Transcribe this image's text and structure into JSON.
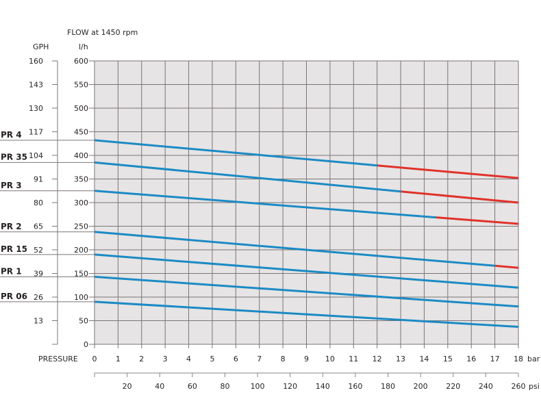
{
  "chart_data": {
    "type": "line",
    "title": "FLOW at 1450 rpm",
    "ylabel_left": "GPH",
    "ylabel_right": "l/h",
    "xlabel": "PRESSURE",
    "x_unit_primary": "bar",
    "x_unit_secondary": "psi",
    "xlim": [
      0,
      18
    ],
    "ylim": [
      0,
      600
    ],
    "grid": true,
    "x_ticks": [
      "0",
      "1",
      "2",
      "3",
      "4",
      "5",
      "6",
      "7",
      "8",
      "9",
      "10",
      "11",
      "12",
      "13",
      "14",
      "15",
      "16",
      "17",
      "18"
    ],
    "y_ticks_lh": [
      "0",
      "50",
      "100",
      "150",
      "200",
      "250",
      "300",
      "350",
      "400",
      "450",
      "500",
      "550",
      "600"
    ],
    "y_ticks_gph": [
      "",
      "13",
      "26",
      "39",
      "52",
      "65",
      "80",
      "91",
      "104",
      "117",
      "130",
      "143",
      "160"
    ],
    "psi_ticks": [
      "20",
      "40",
      "60",
      "80",
      "100",
      "120",
      "140",
      "160",
      "180",
      "200",
      "220",
      "240",
      "260"
    ],
    "colors": {
      "normal": "#1b8ac4",
      "limit": "#e0322a",
      "grid_bg": "#e6e4e5",
      "grid_line": "#7a7476"
    },
    "series": [
      {
        "name": "PR 4",
        "y_at_0": 432,
        "y_at_18": 352,
        "red_from_bar": 12
      },
      {
        "name": "PR 35",
        "y_at_0": 385,
        "y_at_18": 300,
        "red_from_bar": 13
      },
      {
        "name": "PR 3",
        "y_at_0": 325,
        "y_at_18": 255,
        "red_from_bar": 14.5
      },
      {
        "name": "PR 2",
        "y_at_0": 238,
        "y_at_18": 162,
        "red_from_bar": 17
      },
      {
        "name": "PR 15",
        "y_at_0": 190,
        "y_at_18": 120,
        "red_from_bar": null
      },
      {
        "name": "PR 1",
        "y_at_0": 143,
        "y_at_18": 80,
        "red_from_bar": null
      },
      {
        "name": "PR 06",
        "y_at_0": 90,
        "y_at_18": 37,
        "red_from_bar": null
      }
    ]
  }
}
